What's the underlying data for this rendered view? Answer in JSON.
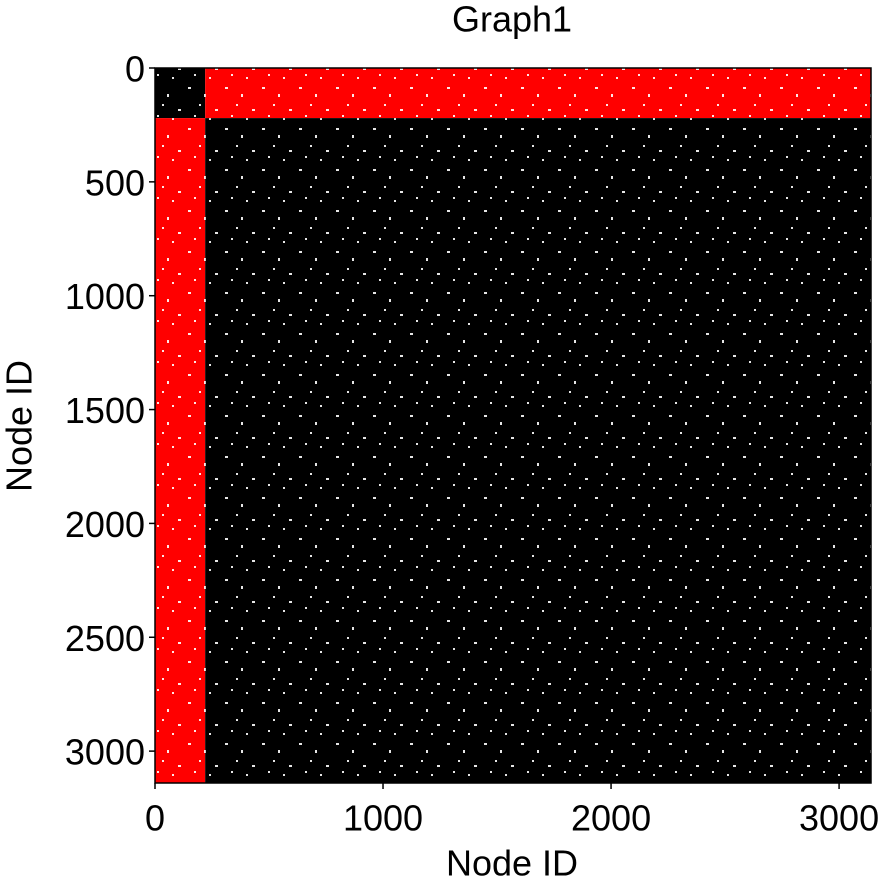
{
  "chart_data": {
    "type": "spy",
    "title": "Graph1",
    "x_label": "Node ID",
    "y_label": "Node ID",
    "xlim": [
      0,
      3140
    ],
    "ylim": [
      3140,
      0
    ],
    "xticks": [
      0,
      1000,
      2000,
      3000
    ],
    "yticks": [
      0,
      500,
      1000,
      1500,
      2000,
      2500,
      3000
    ],
    "blocks": [
      {
        "x": [
          0,
          220
        ],
        "y": [
          0,
          220
        ],
        "color": "#000000"
      },
      {
        "x": [
          220,
          3140
        ],
        "y": [
          0,
          220
        ],
        "color": "#ff0000"
      },
      {
        "x": [
          0,
          220
        ],
        "y": [
          220,
          3140
        ],
        "color": "#ff0000"
      },
      {
        "x": [
          220,
          3140
        ],
        "y": [
          220,
          3140
        ],
        "color": "#000000"
      }
    ]
  }
}
